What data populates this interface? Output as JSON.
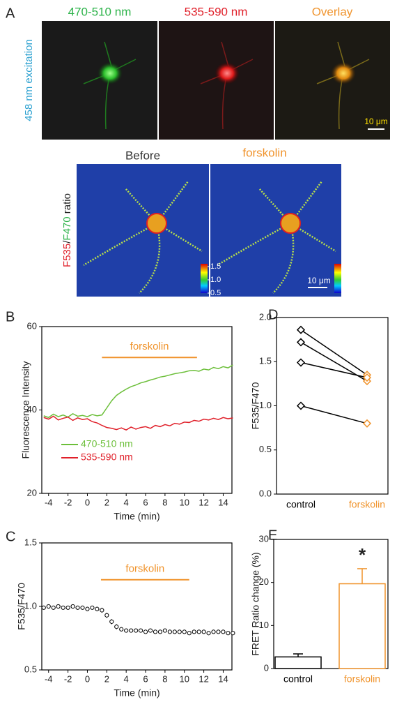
{
  "panel_a": {
    "label": "A",
    "excitation": "458 nm excitation",
    "channels": [
      "470-510 nm",
      "535-590 nm",
      "Overlay"
    ],
    "scale_bar": "10 μm",
    "ratio_titles": [
      "Before",
      "forskolin"
    ],
    "ratio_label": [
      "F535",
      "/",
      "F470",
      " ratio"
    ],
    "colorbar_ticks": [
      {
        "value": 1.5,
        "label": "1.5"
      },
      {
        "value": 1,
        "label": "1.0"
      },
      {
        "value": 0.5,
        "label": "0.5"
      }
    ],
    "ratio_scale_bar": "10 μm"
  },
  "chart_data": [
    {
      "type": "line",
      "panel_label": "B",
      "ylabel": "Fluorescence Intensity",
      "xlabel": "Time (min)",
      "x": [
        -4.5,
        -4,
        -3.5,
        -3,
        -2.5,
        -2,
        -1.5,
        -1,
        -0.5,
        0,
        0.5,
        1,
        1.5,
        2,
        2.5,
        3,
        3.5,
        4,
        4.5,
        5,
        5.5,
        6,
        6.5,
        7,
        7.5,
        8,
        8.5,
        9,
        9.5,
        10,
        10.5,
        11,
        11.5,
        12,
        12.5,
        13,
        13.5,
        14,
        14.5,
        15
      ],
      "series": [
        {
          "name": "470-510 nm",
          "color": "#6cbf3a",
          "values": [
            38.6,
            38.2,
            39.0,
            38.4,
            38.8,
            38.3,
            39.1,
            38.5,
            38.7,
            38.4,
            38.9,
            38.6,
            38.8,
            40.5,
            42.2,
            43.5,
            44.3,
            45.0,
            45.6,
            46.0,
            46.5,
            46.8,
            47.2,
            47.5,
            47.9,
            48.1,
            48.4,
            48.7,
            48.9,
            49.1,
            49.4,
            49.5,
            49.3,
            49.8,
            49.6,
            50.2,
            49.9,
            50.4,
            50.1,
            50.8
          ]
        },
        {
          "name": "535-590 nm",
          "color": "#e0202a",
          "values": [
            38.2,
            37.8,
            38.5,
            37.6,
            38.0,
            38.3,
            37.5,
            38.1,
            37.7,
            37.9,
            37.2,
            36.9,
            36.3,
            35.8,
            35.6,
            35.3,
            35.7,
            35.2,
            35.9,
            35.4,
            35.8,
            36.0,
            35.6,
            36.3,
            36.0,
            36.5,
            36.2,
            36.8,
            36.6,
            37.1,
            37.0,
            37.5,
            37.3,
            37.8,
            37.6,
            38.0,
            37.7,
            38.2,
            37.9,
            38.1
          ]
        }
      ],
      "xlim": [
        -4.7,
        14.9
      ],
      "xticks": [
        -4,
        -2,
        0,
        2,
        4,
        6,
        8,
        10,
        12,
        14
      ],
      "ylim": [
        20,
        60
      ],
      "yticks": [
        20,
        40,
        60
      ],
      "annotation": {
        "text": "forskolin",
        "x": [
          1.5,
          11.3
        ],
        "y": 52.6,
        "color": "#f0932b"
      }
    },
    {
      "type": "line",
      "panel_label": "C",
      "ylabel": "F535/F470",
      "xlabel": "Time (min)",
      "x": [
        -4.5,
        -4,
        -3.5,
        -3,
        -2.5,
        -2,
        -1.5,
        -1,
        -0.5,
        0,
        0.5,
        1,
        1.5,
        2,
        2.5,
        3,
        3.5,
        4,
        4.5,
        5,
        5.5,
        6,
        6.5,
        7,
        7.5,
        8,
        8.5,
        9,
        9.5,
        10,
        10.5,
        11,
        11.5,
        12,
        12.5,
        13,
        13.5,
        14,
        14.5,
        15
      ],
      "series": [
        {
          "color": "#000000",
          "values": [
            0.99,
            1.0,
            0.99,
            1.0,
            0.99,
            0.99,
            1.0,
            0.99,
            0.99,
            0.98,
            0.99,
            0.98,
            0.97,
            0.93,
            0.88,
            0.84,
            0.82,
            0.81,
            0.81,
            0.81,
            0.81,
            0.8,
            0.81,
            0.8,
            0.8,
            0.81,
            0.8,
            0.8,
            0.8,
            0.8,
            0.79,
            0.8,
            0.8,
            0.8,
            0.79,
            0.8,
            0.8,
            0.8,
            0.79,
            0.79
          ],
          "errors": [
            0.015,
            0.015,
            0.015,
            0.015,
            0.015,
            0.015,
            0.015,
            0.015,
            0.015,
            0.015,
            0.015,
            0.015,
            0.02,
            0.02,
            0.02,
            0.02,
            0.015,
            0.01,
            0.008,
            0.008,
            0.008,
            0.008,
            0.008,
            0.008,
            0.008,
            0.008,
            0.008,
            0.008,
            0.008,
            0.008,
            0.008,
            0.008,
            0.008,
            0.008,
            0.008,
            0.008,
            0.008,
            0.008,
            0.008,
            0.008
          ]
        }
      ],
      "xlim": [
        -4.7,
        14.9
      ],
      "xticks": [
        -4,
        -2,
        0,
        2,
        4,
        6,
        8,
        10,
        12,
        14
      ],
      "ylim": [
        0.5,
        1.5
      ],
      "yticks": [
        0.5,
        {
          "value": 1,
          "label": "1.0"
        },
        1.5
      ],
      "annotation": {
        "text": "forskolin",
        "x": [
          1.4,
          10.5
        ],
        "y": 1.21,
        "color": "#f0932b"
      }
    },
    {
      "type": "paired",
      "panel_label": "D",
      "ylabel": "F535/F470",
      "categories": [
        "control",
        "forskolin"
      ],
      "category_colors": [
        "#000000",
        "#f0932b"
      ],
      "series": [
        {
          "values": [
            1.86,
            1.35
          ]
        },
        {
          "values": [
            1.72,
            1.28
          ]
        },
        {
          "values": [
            1.49,
            1.32
          ]
        },
        {
          "values": [
            1.0,
            0.8
          ]
        }
      ],
      "ylim": [
        0,
        2
      ],
      "yticks": [
        {
          "value": 0,
          "label": "0.0"
        },
        0.5,
        {
          "value": 1,
          "label": "1.0"
        },
        1.5,
        {
          "value": 2,
          "label": "2.0"
        }
      ]
    },
    {
      "type": "bar",
      "panel_label": "E",
      "ylabel": "FRET Ratio change (%)",
      "categories": [
        "control",
        "forskolin"
      ],
      "category_colors": [
        "#000000",
        "#f0932b"
      ],
      "values": [
        2.7,
        19.7
      ],
      "errors": [
        0.7,
        3.5
      ],
      "annotation": "*",
      "ylim": [
        0,
        30
      ],
      "yticks": [
        0,
        10,
        20,
        30
      ]
    }
  ]
}
